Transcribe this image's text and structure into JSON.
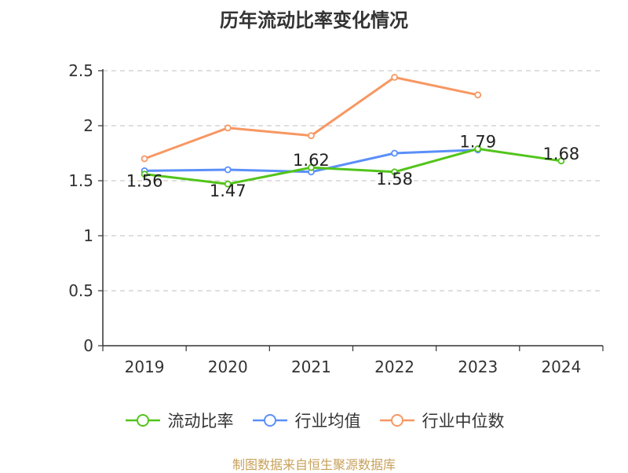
{
  "title": "历年流动比率变化情况",
  "source": "制图数据来自恒生聚源数据库",
  "colors": {
    "current_ratio": "#52c41a",
    "industry_mean": "#5b8ff9",
    "industry_median": "#f79762",
    "grid": "#cccccc",
    "axis": "#333333"
  },
  "chart_data": {
    "type": "line",
    "title": "历年流动比率变化情况",
    "categories": [
      "2019",
      "2020",
      "2021",
      "2022",
      "2023",
      "2024"
    ],
    "y_ticks": [
      "0",
      "0.5",
      "1",
      "1.5",
      "2",
      "2.5"
    ],
    "ylim": [
      0,
      2.5
    ],
    "grid": true,
    "legend_position": "bottom",
    "series": [
      {
        "name": "流动比率",
        "key": "current_ratio",
        "values": [
          1.56,
          1.47,
          1.62,
          1.58,
          1.79,
          1.68
        ],
        "labels": [
          "1.56",
          "1.47",
          "1.62",
          "1.58",
          "1.79",
          "1.68"
        ]
      },
      {
        "name": "行业均值",
        "key": "industry_mean",
        "values": [
          1.59,
          1.6,
          1.58,
          1.75,
          1.78,
          null
        ]
      },
      {
        "name": "行业中位数",
        "key": "industry_median",
        "values": [
          1.7,
          1.98,
          1.91,
          2.44,
          2.28,
          null
        ]
      }
    ]
  }
}
